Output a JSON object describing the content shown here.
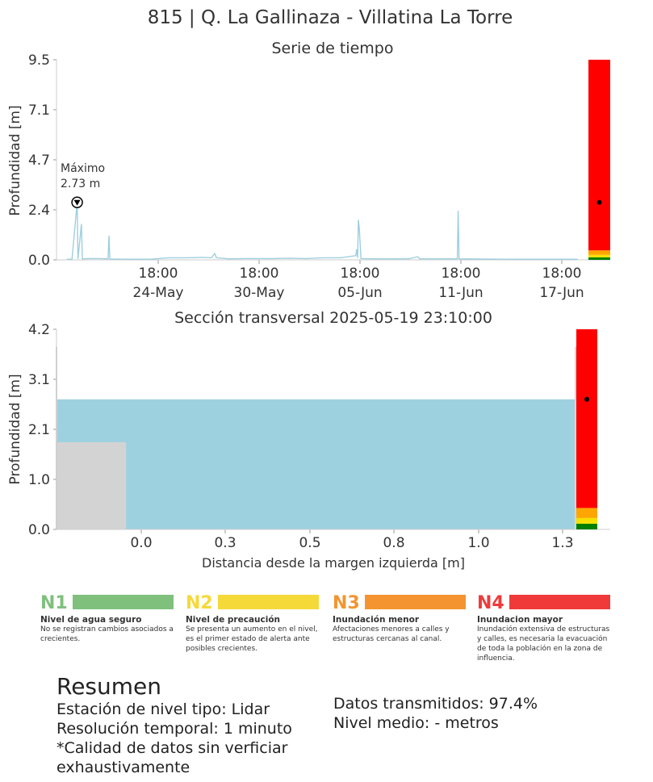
{
  "page_title": "815 | Q. La Gallinaza - Villatina La Torre",
  "chart_data": [
    {
      "type": "line",
      "title": "Serie de tiempo",
      "ylabel": "Profundidad [m]",
      "ylim": [
        0.0,
        9.5
      ],
      "yticks": [
        "0.0",
        "2.4",
        "4.7",
        "7.1",
        "9.5"
      ],
      "xticks": [
        {
          "time": "18:00",
          "date": "24-May"
        },
        {
          "time": "18:00",
          "date": "30-May"
        },
        {
          "time": "18:00",
          "date": "05-Jun"
        },
        {
          "time": "18:00",
          "date": "11-Jun"
        },
        {
          "time": "18:00",
          "date": "17-Jun"
        }
      ],
      "series_color": "#9ecfdf",
      "x_day_range": [
        0,
        30.5
      ],
      "series": [
        {
          "values": [
            [
              0.6,
              0.03
            ],
            [
              0.9,
              0.03
            ],
            [
              1.2,
              2.73
            ],
            [
              1.25,
              0.05
            ],
            [
              1.45,
              1.7
            ],
            [
              1.5,
              0.05
            ],
            [
              1.9,
              0.06
            ],
            [
              2.5,
              0.06
            ],
            [
              3.0,
              0.05
            ],
            [
              3.05,
              1.15
            ],
            [
              3.1,
              0.04
            ],
            [
              4.0,
              0.03
            ],
            [
              5.5,
              0.03
            ],
            [
              6.5,
              0.1
            ],
            [
              7.5,
              0.1
            ],
            [
              8.5,
              0.12
            ],
            [
              9.0,
              0.1
            ],
            [
              9.2,
              0.3
            ],
            [
              9.3,
              0.1
            ],
            [
              10.0,
              0.05
            ],
            [
              11.0,
              0.06
            ],
            [
              12.5,
              0.06
            ],
            [
              13.5,
              0.08
            ],
            [
              14.5,
              0.06
            ],
            [
              15.5,
              0.1
            ],
            [
              16.5,
              0.1
            ],
            [
              17.4,
              0.2
            ],
            [
              17.45,
              0.5
            ],
            [
              17.5,
              0.1
            ],
            [
              17.55,
              1.9
            ],
            [
              17.6,
              1.5
            ],
            [
              17.7,
              0.06
            ],
            [
              18.5,
              0.05
            ],
            [
              19.5,
              0.05
            ],
            [
              20.5,
              0.05
            ],
            [
              21.0,
              0.15
            ],
            [
              21.1,
              0.05
            ],
            [
              22.5,
              0.05
            ],
            [
              23.3,
              0.05
            ],
            [
              23.35,
              2.33
            ],
            [
              23.4,
              0.05
            ],
            [
              24.5,
              0.04
            ],
            [
              26.0,
              0.03
            ],
            [
              27.5,
              0.03
            ],
            [
              29.0,
              0.03
            ],
            [
              30.3,
              0.03
            ]
          ]
        }
      ],
      "annotation": {
        "label": "Máximo",
        "value_text": "2.73 m",
        "x": 1.2,
        "y": 2.73
      },
      "level_bar": {
        "colors": [
          "#008000",
          "#f5e000",
          "#ffa500",
          "#ff0000"
        ],
        "thresholds": [
          0.12,
          0.24,
          0.45,
          9.5
        ],
        "current": 2.73
      }
    },
    {
      "type": "area",
      "title": "Sección transversal 2025-05-19 23:10:00",
      "xlabel": "Distancia desde la margen izquierda [m]",
      "ylabel": "Profundidad [m]",
      "ylim": [
        0.0,
        4.2
      ],
      "yticks": [
        "0.0",
        "1.0",
        "2.1",
        "3.1",
        "4.2"
      ],
      "xlim": [
        -0.25,
        1.38
      ],
      "xticks": [
        "0.0",
        "0.3",
        "0.5",
        "0.8",
        "1.0",
        "1.3"
      ],
      "water_level": 2.73,
      "water_color": "#9ed1e0",
      "bank_color": "#d3d3d3",
      "left_bank": {
        "x": [
          -0.25,
          -0.045
        ],
        "height": 1.83
      },
      "right_wall": {
        "x": [
          1.285,
          1.31
        ],
        "height": 3.83
      },
      "left_edge": {
        "height": 3.83
      },
      "level_bar": {
        "colors": [
          "#008000",
          "#f5e000",
          "#ffa500",
          "#ff0000"
        ],
        "thresholds": [
          0.12,
          0.24,
          0.45,
          4.2
        ],
        "current": 2.73
      }
    }
  ],
  "legend": [
    {
      "code": "N1",
      "color": "#7fc07d",
      "name": "Nivel de agua seguro",
      "desc": "No se registran cambios asociados a crecientes."
    },
    {
      "code": "N2",
      "color": "#f5d939",
      "name": "Nivel de precaución",
      "desc": "Se presenta un aumento en el nivel, es el primer estado de alerta ante posibles crecientes."
    },
    {
      "code": "N3",
      "color": "#f39430",
      "name": "Inundación menor",
      "desc": "Afectaciones menores a calles y estructuras cercanas al canal."
    },
    {
      "code": "N4",
      "color": "#f03a3a",
      "name": "Inundacion mayor",
      "desc": "Inundación extensiva de estructuras y calles, es necesaria la evacuación de toda la población en la zona de influencia."
    }
  ],
  "summary": {
    "title": "Resumen",
    "station_type": "Estación de nivel tipo: Lidar",
    "resolution": "Resolución temporal: 1 minuto",
    "quality_note": "*Calidad de datos sin verficiar exhaustivamente",
    "transmitted": "Datos transmitidos: 97.4%",
    "mean_level": "Nivel medio: - metros"
  }
}
